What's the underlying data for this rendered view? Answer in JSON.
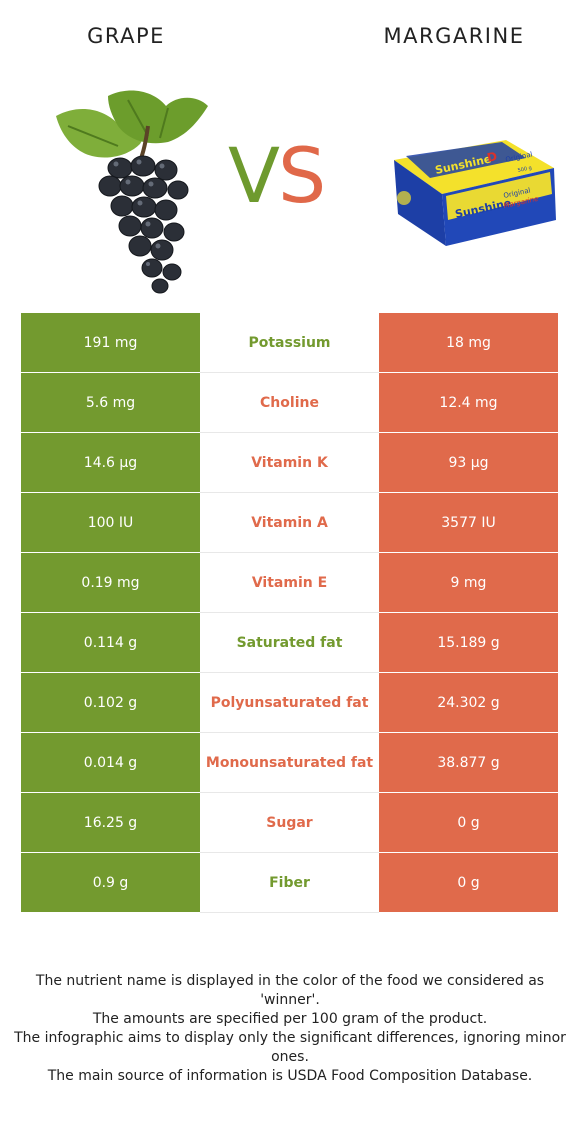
{
  "header": {
    "left_food": "GRAPE",
    "right_food": "MARGARINE",
    "vs_v": "V",
    "vs_s": "S"
  },
  "images": {
    "left": "grape-bunch-icon",
    "right": "margarine-package-icon",
    "margarine_brand": "Sunshine",
    "margarine_letter": "D",
    "margarine_sub": "Original",
    "margarine_name": "Margarine",
    "margarine_weight": "500 g"
  },
  "colors": {
    "winner_left": "#739a2f",
    "winner_right": "#e06a4b"
  },
  "rows": [
    {
      "left": "191 mg",
      "nutrient": "Potassium",
      "right": "18 mg",
      "winner": "left"
    },
    {
      "left": "5.6 mg",
      "nutrient": "Choline",
      "right": "12.4 mg",
      "winner": "right"
    },
    {
      "left": "14.6 µg",
      "nutrient": "Vitamin K",
      "right": "93 µg",
      "winner": "right"
    },
    {
      "left": "100 IU",
      "nutrient": "Vitamin A",
      "right": "3577 IU",
      "winner": "right"
    },
    {
      "left": "0.19 mg",
      "nutrient": "Vitamin E",
      "right": "9 mg",
      "winner": "right"
    },
    {
      "left": "0.114 g",
      "nutrient": "Saturated fat",
      "right": "15.189 g",
      "winner": "left"
    },
    {
      "left": "0.102 g",
      "nutrient": "Polyunsaturated fat",
      "right": "24.302 g",
      "winner": "right"
    },
    {
      "left": "0.014 g",
      "nutrient": "Monounsaturated fat",
      "right": "38.877 g",
      "winner": "right"
    },
    {
      "left": "16.25 g",
      "nutrient": "Sugar",
      "right": "0 g",
      "winner": "right"
    },
    {
      "left": "0.9 g",
      "nutrient": "Fiber",
      "right": "0 g",
      "winner": "left"
    }
  ],
  "footnote": [
    "The nutrient name is displayed in the color of the food we considered as 'winner'.",
    "The amounts are specified per 100 gram of the product.",
    "The infographic aims to display only the significant differences, ignoring minor ones.",
    "The main source of information is USDA Food Composition Database."
  ]
}
